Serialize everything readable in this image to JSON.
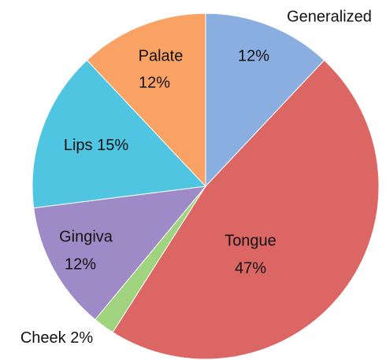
{
  "chart_data": {
    "type": "pie",
    "categories": [
      "Generalized",
      "Tongue",
      "Cheek",
      "Gingiva",
      "Lips",
      "Palate"
    ],
    "values": [
      12,
      47,
      2,
      12,
      15,
      12
    ],
    "value_labels": [
      "12%",
      "47%",
      "2%",
      "12%",
      "15%",
      "12%"
    ],
    "colors": [
      "#8aaee0",
      "#dc6664",
      "#9fd37e",
      "#9e8ac6",
      "#4fc5e2",
      "#f9a263"
    ]
  }
}
